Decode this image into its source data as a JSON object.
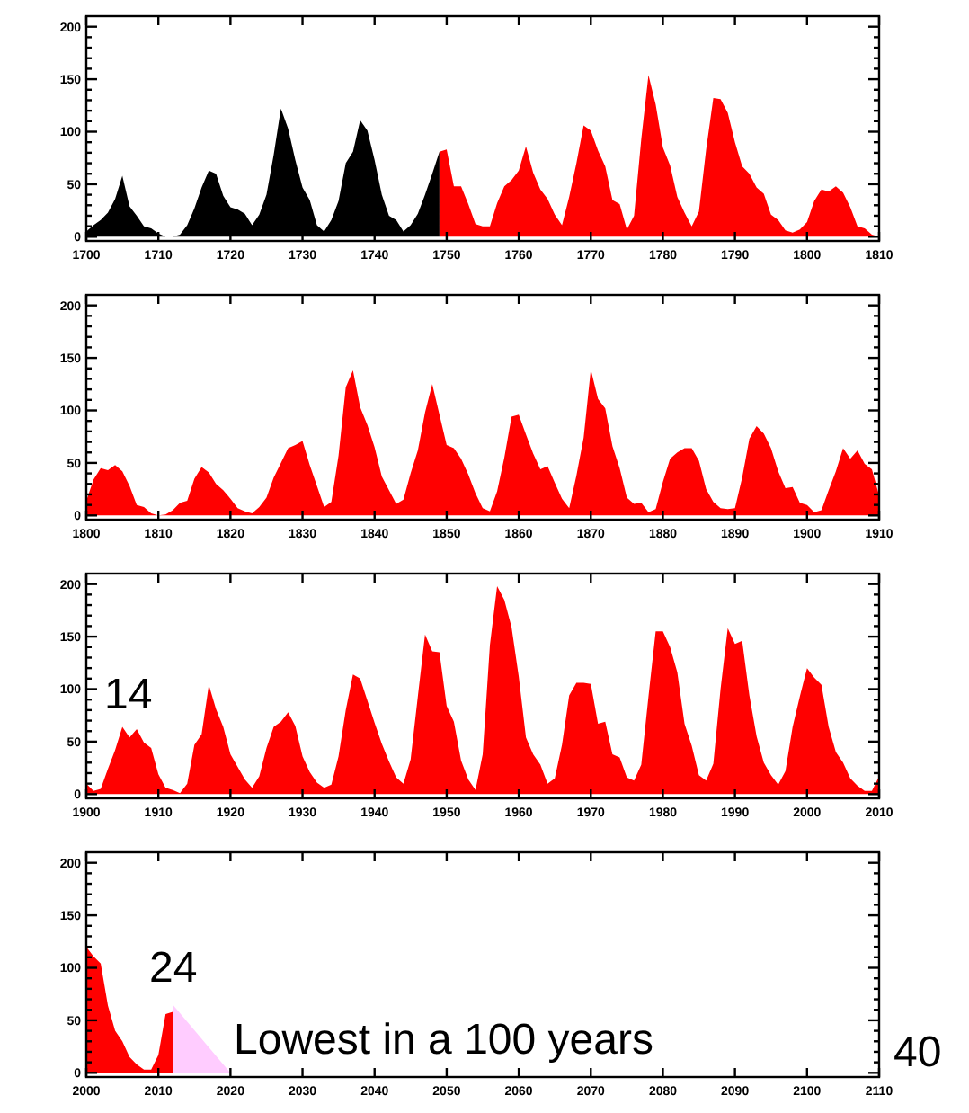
{
  "chart_data": [
    {
      "type": "area",
      "xlim": [
        1700,
        1810
      ],
      "ylim": [
        -4,
        210
      ],
      "xticks": [
        1700,
        1710,
        1720,
        1730,
        1740,
        1750,
        1760,
        1770,
        1780,
        1790,
        1800,
        1810
      ],
      "yticks": [
        0,
        {
          "value": 10,
          "label": null
        },
        {
          "value": 20,
          "label": null
        },
        {
          "value": 30,
          "label": null
        },
        {
          "value": 40,
          "label": null
        },
        50,
        {
          "value": 60,
          "label": null
        },
        {
          "value": 70,
          "label": null
        },
        {
          "value": 80,
          "label": null
        },
        {
          "value": 90,
          "label": null
        },
        100,
        {
          "value": 110,
          "label": null
        },
        {
          "value": 120,
          "label": null
        },
        {
          "value": 130,
          "label": null
        },
        {
          "value": 140,
          "label": null
        },
        150,
        {
          "value": 160,
          "label": null
        },
        {
          "value": 170,
          "label": null
        },
        {
          "value": 180,
          "label": null
        },
        {
          "value": 190,
          "label": null
        },
        200
      ],
      "series": [
        {
          "color": "#000000",
          "x": [
            1700,
            1701,
            1702,
            1703,
            1704,
            1705,
            1706,
            1707,
            1708,
            1709,
            1710,
            1711,
            1712,
            1713,
            1714,
            1715,
            1716,
            1717,
            1718,
            1719,
            1720,
            1721,
            1722,
            1723,
            1724,
            1725,
            1726,
            1727,
            1728,
            1729,
            1730,
            1731,
            1732,
            1733,
            1734,
            1735,
            1736,
            1737,
            1738,
            1739,
            1740,
            1741,
            1742,
            1743,
            1744,
            1745,
            1746,
            1747,
            1748,
            1749
          ],
          "values": [
            5,
            11,
            16,
            23,
            36,
            58,
            29,
            20,
            10,
            8,
            3,
            0,
            0,
            2,
            11,
            27,
            47,
            63,
            60,
            39,
            28,
            26,
            22,
            11,
            21,
            40,
            78,
            122,
            103,
            73,
            47,
            35,
            11,
            5,
            16,
            34,
            70,
            81,
            111,
            101,
            73,
            40,
            20,
            16,
            5,
            11,
            22,
            40,
            60,
            81
          ]
        },
        {
          "color": "#ff0000",
          "x": [
            1749,
            1750,
            1751,
            1752,
            1753,
            1754,
            1755,
            1756,
            1757,
            1758,
            1759,
            1760,
            1761,
            1762,
            1763,
            1764,
            1765,
            1766,
            1767,
            1768,
            1769,
            1770,
            1771,
            1772,
            1773,
            1774,
            1775,
            1776,
            1777,
            1778,
            1779,
            1780,
            1781,
            1782,
            1783,
            1784,
            1785,
            1786,
            1787,
            1788,
            1789,
            1790,
            1791,
            1792,
            1793,
            1794,
            1795,
            1796,
            1797,
            1798,
            1799,
            1800,
            1801,
            1802,
            1803,
            1804,
            1805,
            1806,
            1807,
            1808,
            1809,
            1810
          ],
          "values": [
            81,
            83,
            48,
            48,
            31,
            12,
            10,
            10,
            32,
            48,
            54,
            63,
            86,
            61,
            45,
            36,
            21,
            11,
            38,
            70,
            106,
            101,
            82,
            67,
            35,
            31,
            7,
            20,
            93,
            154,
            126,
            85,
            68,
            38,
            23,
            10,
            24,
            83,
            132,
            131,
            118,
            90,
            67,
            60,
            47,
            41,
            21,
            16,
            6,
            4,
            7,
            14,
            34,
            45,
            43,
            48,
            42,
            28,
            10,
            8,
            2,
            0
          ]
        }
      ]
    },
    {
      "type": "area",
      "xlim": [
        1800,
        1910
      ],
      "ylim": [
        -4,
        210
      ],
      "xticks": [
        1800,
        1810,
        1820,
        1830,
        1840,
        1850,
        1860,
        1870,
        1880,
        1890,
        1900,
        1910
      ],
      "yticks": [
        0,
        {
          "value": 10,
          "label": null
        },
        {
          "value": 20,
          "label": null
        },
        {
          "value": 30,
          "label": null
        },
        {
          "value": 40,
          "label": null
        },
        50,
        {
          "value": 60,
          "label": null
        },
        {
          "value": 70,
          "label": null
        },
        {
          "value": 80,
          "label": null
        },
        {
          "value": 90,
          "label": null
        },
        100,
        {
          "value": 110,
          "label": null
        },
        {
          "value": 120,
          "label": null
        },
        {
          "value": 130,
          "label": null
        },
        {
          "value": 140,
          "label": null
        },
        150,
        {
          "value": 160,
          "label": null
        },
        {
          "value": 170,
          "label": null
        },
        {
          "value": 180,
          "label": null
        },
        {
          "value": 190,
          "label": null
        },
        200
      ],
      "series": [
        {
          "color": "#ff0000",
          "x": [
            1800,
            1801,
            1802,
            1803,
            1804,
            1805,
            1806,
            1807,
            1808,
            1809,
            1810,
            1811,
            1812,
            1813,
            1814,
            1815,
            1816,
            1817,
            1818,
            1819,
            1820,
            1821,
            1822,
            1823,
            1824,
            1825,
            1826,
            1827,
            1828,
            1829,
            1830,
            1831,
            1832,
            1833,
            1834,
            1835,
            1836,
            1837,
            1838,
            1839,
            1840,
            1841,
            1842,
            1843,
            1844,
            1845,
            1846,
            1847,
            1848,
            1849,
            1850,
            1851,
            1852,
            1853,
            1854,
            1855,
            1856,
            1857,
            1858,
            1859,
            1860,
            1861,
            1862,
            1863,
            1864,
            1865,
            1866,
            1867,
            1868,
            1869,
            1870,
            1871,
            1872,
            1873,
            1874,
            1875,
            1876,
            1877,
            1878,
            1879,
            1880,
            1881,
            1882,
            1883,
            1884,
            1885,
            1886,
            1887,
            1888,
            1889,
            1890,
            1891,
            1892,
            1893,
            1894,
            1895,
            1896,
            1897,
            1898,
            1899,
            1900,
            1901,
            1902,
            1903,
            1904,
            1905,
            1906,
            1907,
            1908,
            1909,
            1910
          ],
          "values": [
            14,
            34,
            45,
            43,
            48,
            42,
            28,
            10,
            8,
            2,
            0,
            1,
            5,
            12,
            14,
            35,
            46,
            41,
            30,
            24,
            16,
            7,
            4,
            2,
            8,
            17,
            36,
            50,
            64,
            67,
            71,
            48,
            28,
            8,
            13,
            57,
            122,
            138,
            103,
            86,
            65,
            37,
            24,
            11,
            15,
            40,
            62,
            98,
            125,
            96,
            67,
            64,
            54,
            39,
            21,
            7,
            4,
            23,
            55,
            94,
            96,
            77,
            59,
            44,
            47,
            31,
            16,
            7,
            38,
            74,
            139,
            111,
            102,
            66,
            45,
            17,
            11,
            12,
            3,
            6,
            32,
            54,
            60,
            64,
            64,
            52,
            25,
            13,
            7,
            6,
            7,
            36,
            73,
            85,
            78,
            64,
            42,
            26,
            27,
            12,
            10,
            3,
            5,
            24,
            42,
            64,
            54,
            62,
            49,
            44,
            19
          ]
        }
      ]
    },
    {
      "type": "area",
      "xlim": [
        1900,
        2010
      ],
      "ylim": [
        -4,
        210
      ],
      "xticks": [
        1900,
        1910,
        1920,
        1930,
        1940,
        1950,
        1960,
        1970,
        1980,
        1990,
        2000,
        2010
      ],
      "yticks": [
        0,
        {
          "value": 10,
          "label": null
        },
        {
          "value": 20,
          "label": null
        },
        {
          "value": 30,
          "label": null
        },
        {
          "value": 40,
          "label": null
        },
        50,
        {
          "value": 60,
          "label": null
        },
        {
          "value": 70,
          "label": null
        },
        {
          "value": 80,
          "label": null
        },
        {
          "value": 90,
          "label": null
        },
        100,
        {
          "value": 110,
          "label": null
        },
        {
          "value": 120,
          "label": null
        },
        {
          "value": 130,
          "label": null
        },
        {
          "value": 140,
          "label": null
        },
        150,
        {
          "value": 160,
          "label": null
        },
        {
          "value": 170,
          "label": null
        },
        {
          "value": 180,
          "label": null
        },
        {
          "value": 190,
          "label": null
        },
        200
      ],
      "annotations": [
        "14"
      ],
      "series": [
        {
          "color": "#ff0000",
          "x": [
            1900,
            1901,
            1902,
            1903,
            1904,
            1905,
            1906,
            1907,
            1908,
            1909,
            1910,
            1911,
            1912,
            1913,
            1914,
            1915,
            1916,
            1917,
            1918,
            1919,
            1920,
            1921,
            1922,
            1923,
            1924,
            1925,
            1926,
            1927,
            1928,
            1929,
            1930,
            1931,
            1932,
            1933,
            1934,
            1935,
            1936,
            1937,
            1938,
            1939,
            1940,
            1941,
            1942,
            1943,
            1944,
            1945,
            1946,
            1947,
            1948,
            1949,
            1950,
            1951,
            1952,
            1953,
            1954,
            1955,
            1956,
            1957,
            1958,
            1959,
            1960,
            1961,
            1962,
            1963,
            1964,
            1965,
            1966,
            1967,
            1968,
            1969,
            1970,
            1971,
            1972,
            1973,
            1974,
            1975,
            1976,
            1977,
            1978,
            1979,
            1980,
            1981,
            1982,
            1983,
            1984,
            1985,
            1986,
            1987,
            1988,
            1989,
            1990,
            1991,
            1992,
            1993,
            1994,
            1995,
            1996,
            1997,
            1998,
            1999,
            2000,
            2001,
            2002,
            2003,
            2004,
            2005,
            2006,
            2007,
            2008,
            2009,
            2010
          ],
          "values": [
            10,
            3,
            5,
            24,
            42,
            64,
            54,
            62,
            49,
            44,
            19,
            6,
            4,
            1,
            10,
            47,
            57,
            104,
            81,
            64,
            38,
            26,
            14,
            6,
            17,
            44,
            64,
            69,
            78,
            65,
            36,
            21,
            11,
            6,
            9,
            36,
            80,
            114,
            110,
            89,
            68,
            48,
            31,
            16,
            10,
            33,
            93,
            152,
            136,
            135,
            84,
            69,
            32,
            14,
            4,
            38,
            142,
            198,
            185,
            159,
            112,
            54,
            38,
            28,
            10,
            15,
            47,
            94,
            106,
            106,
            105,
            67,
            69,
            38,
            35,
            16,
            13,
            28,
            93,
            155,
            155,
            140,
            116,
            67,
            46,
            18,
            13,
            29,
            100,
            158,
            143,
            146,
            94,
            55,
            30,
            18,
            9,
            22,
            64,
            93,
            120,
            111,
            104,
            64,
            40,
            30,
            15,
            8,
            3,
            3,
            17
          ]
        }
      ]
    },
    {
      "type": "area",
      "xlim": [
        2000,
        2110
      ],
      "ylim": [
        -4,
        210
      ],
      "xticks": [
        2000,
        2010,
        2020,
        2030,
        2040,
        2050,
        2060,
        2070,
        2080,
        2090,
        2100,
        2110
      ],
      "yticks": [
        0,
        {
          "value": 10,
          "label": null
        },
        {
          "value": 20,
          "label": null
        },
        {
          "value": 30,
          "label": null
        },
        {
          "value": 40,
          "label": null
        },
        50,
        {
          "value": 60,
          "label": null
        },
        {
          "value": 70,
          "label": null
        },
        {
          "value": 80,
          "label": null
        },
        {
          "value": 90,
          "label": null
        },
        100,
        {
          "value": 110,
          "label": null
        },
        {
          "value": 120,
          "label": null
        },
        {
          "value": 130,
          "label": null
        },
        {
          "value": 140,
          "label": null
        },
        150,
        {
          "value": 160,
          "label": null
        },
        {
          "value": 170,
          "label": null
        },
        {
          "value": 180,
          "label": null
        },
        {
          "value": 190,
          "label": null
        },
        200
      ],
      "annotations": [
        "24",
        "Lowest in a 100 years",
        "40"
      ],
      "series": [
        {
          "color": "#ff0000",
          "x": [
            2000,
            2001,
            2002,
            2003,
            2004,
            2005,
            2006,
            2007,
            2008,
            2009,
            2010,
            2011,
            2012
          ],
          "values": [
            120,
            111,
            104,
            64,
            40,
            30,
            15,
            8,
            3,
            3,
            17,
            56,
            58
          ]
        },
        {
          "color": "#ffccff",
          "x": [
            2012,
            2020
          ],
          "values": [
            65,
            0
          ]
        }
      ]
    }
  ]
}
